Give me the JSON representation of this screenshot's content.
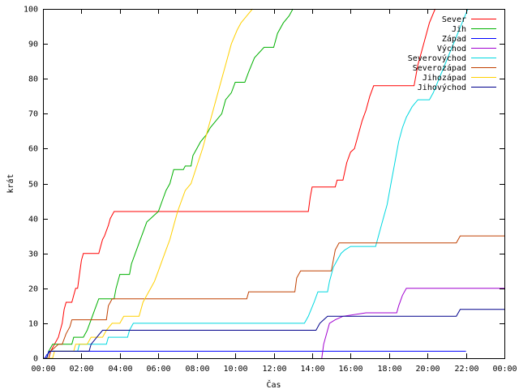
{
  "chart_data": {
    "type": "line",
    "xlabel": "Čas",
    "ylabel": "krát",
    "ylim": [
      0,
      100
    ],
    "xlim": [
      0,
      24
    ],
    "y_ticks": [
      0,
      10,
      20,
      30,
      40,
      50,
      60,
      70,
      80,
      90,
      100
    ],
    "x_ticks": [
      0,
      2,
      4,
      6,
      8,
      10,
      12,
      14,
      16,
      18,
      20,
      22,
      24
    ],
    "x_tick_labels": [
      "00:00",
      "02:00",
      "04:00",
      "06:00",
      "08:00",
      "10:00",
      "12:00",
      "14:00",
      "16:00",
      "18:00",
      "20:00",
      "22:00",
      "00:00"
    ],
    "grid": false,
    "legend_position": "top-right",
    "series": [
      {
        "name": "Sever",
        "color": "#ff0000",
        "points": [
          [
            0,
            0
          ],
          [
            0.3,
            0
          ],
          [
            0.4,
            2
          ],
          [
            0.6,
            4
          ],
          [
            0.8,
            6
          ],
          [
            0.9,
            8
          ],
          [
            1.0,
            10
          ],
          [
            1.1,
            14
          ],
          [
            1.2,
            16
          ],
          [
            1.5,
            16
          ],
          [
            1.6,
            18
          ],
          [
            1.7,
            20
          ],
          [
            1.8,
            20
          ],
          [
            1.9,
            24
          ],
          [
            2.0,
            28
          ],
          [
            2.1,
            30
          ],
          [
            2.9,
            30
          ],
          [
            3.0,
            32
          ],
          [
            3.1,
            34
          ],
          [
            3.2,
            35
          ],
          [
            3.4,
            38
          ],
          [
            3.5,
            40
          ],
          [
            3.7,
            42
          ],
          [
            13.8,
            42
          ],
          [
            13.9,
            46
          ],
          [
            14.0,
            49
          ],
          [
            15.2,
            49
          ],
          [
            15.3,
            51
          ],
          [
            15.6,
            51
          ],
          [
            15.8,
            56
          ],
          [
            16.0,
            59
          ],
          [
            16.2,
            60
          ],
          [
            16.4,
            64
          ],
          [
            16.6,
            68
          ],
          [
            16.8,
            71
          ],
          [
            17.0,
            75
          ],
          [
            17.2,
            78
          ],
          [
            19.3,
            78
          ],
          [
            19.5,
            84
          ],
          [
            19.7,
            88
          ],
          [
            19.9,
            92
          ],
          [
            20.1,
            96
          ],
          [
            20.4,
            100
          ]
        ]
      },
      {
        "name": "Jih",
        "color": "#00b000",
        "points": [
          [
            0,
            0
          ],
          [
            0.2,
            0
          ],
          [
            0.3,
            2
          ],
          [
            0.5,
            4
          ],
          [
            1.5,
            4
          ],
          [
            1.6,
            6
          ],
          [
            2.1,
            6
          ],
          [
            2.3,
            8
          ],
          [
            2.5,
            11
          ],
          [
            2.7,
            14
          ],
          [
            2.9,
            17
          ],
          [
            3.7,
            17
          ],
          [
            3.8,
            20
          ],
          [
            4.0,
            24
          ],
          [
            4.5,
            24
          ],
          [
            4.6,
            27
          ],
          [
            4.8,
            30
          ],
          [
            5.0,
            33
          ],
          [
            5.2,
            36
          ],
          [
            5.4,
            39
          ],
          [
            5.6,
            40
          ],
          [
            5.8,
            41
          ],
          [
            6.0,
            42
          ],
          [
            6.2,
            45
          ],
          [
            6.4,
            48
          ],
          [
            6.6,
            50
          ],
          [
            6.8,
            54
          ],
          [
            7.3,
            54
          ],
          [
            7.4,
            55
          ],
          [
            7.7,
            55
          ],
          [
            7.8,
            58
          ],
          [
            8.0,
            60
          ],
          [
            8.2,
            62
          ],
          [
            8.5,
            64
          ],
          [
            8.7,
            66
          ],
          [
            9.0,
            68
          ],
          [
            9.3,
            70
          ],
          [
            9.5,
            74
          ],
          [
            9.8,
            76
          ],
          [
            10.0,
            79
          ],
          [
            10.5,
            79
          ],
          [
            10.7,
            82
          ],
          [
            11.0,
            86
          ],
          [
            11.5,
            89
          ],
          [
            12.0,
            89
          ],
          [
            12.2,
            93
          ],
          [
            12.5,
            96
          ],
          [
            12.8,
            98
          ],
          [
            13.0,
            100
          ]
        ]
      },
      {
        "name": "Západ",
        "color": "#0000ff",
        "points": [
          [
            0,
            0
          ],
          [
            0.1,
            0
          ],
          [
            0.2,
            1
          ],
          [
            0.4,
            2
          ],
          [
            22.0,
            2
          ]
        ]
      },
      {
        "name": "Východ",
        "color": "#a000d0",
        "points": [
          [
            14.5,
            0
          ],
          [
            14.6,
            4
          ],
          [
            14.8,
            8
          ],
          [
            14.9,
            10
          ],
          [
            15.2,
            11
          ],
          [
            15.6,
            12
          ],
          [
            16.8,
            13
          ],
          [
            18.4,
            13
          ],
          [
            18.5,
            15
          ],
          [
            18.7,
            18
          ],
          [
            18.9,
            20
          ],
          [
            24,
            20
          ]
        ]
      },
      {
        "name": "Severovýchod",
        "color": "#00d8e0",
        "points": [
          [
            0,
            0
          ],
          [
            0.2,
            0
          ],
          [
            0.3,
            2
          ],
          [
            1.8,
            2
          ],
          [
            1.9,
            4
          ],
          [
            3.3,
            4
          ],
          [
            3.4,
            6
          ],
          [
            4.4,
            6
          ],
          [
            4.5,
            8
          ],
          [
            4.7,
            10
          ],
          [
            13.6,
            10
          ],
          [
            13.8,
            12
          ],
          [
            14.1,
            16
          ],
          [
            14.3,
            19
          ],
          [
            14.8,
            19
          ],
          [
            14.9,
            22
          ],
          [
            15.1,
            26
          ],
          [
            15.3,
            28
          ],
          [
            15.5,
            30
          ],
          [
            15.7,
            31
          ],
          [
            16.0,
            32
          ],
          [
            17.3,
            32
          ],
          [
            17.5,
            36
          ],
          [
            17.7,
            40
          ],
          [
            17.9,
            44
          ],
          [
            18.1,
            50
          ],
          [
            18.3,
            56
          ],
          [
            18.5,
            62
          ],
          [
            18.7,
            66
          ],
          [
            18.9,
            69
          ],
          [
            19.2,
            72
          ],
          [
            19.5,
            74
          ],
          [
            20.1,
            74
          ],
          [
            20.3,
            76
          ],
          [
            20.6,
            80
          ],
          [
            20.9,
            84
          ],
          [
            21.2,
            88
          ],
          [
            21.5,
            92
          ],
          [
            21.8,
            96
          ],
          [
            22.1,
            100
          ]
        ]
      },
      {
        "name": "Severozápad",
        "color": "#c04000",
        "points": [
          [
            0,
            0
          ],
          [
            0.3,
            0
          ],
          [
            0.4,
            2
          ],
          [
            0.6,
            3
          ],
          [
            0.8,
            4
          ],
          [
            1.0,
            4
          ],
          [
            1.2,
            7
          ],
          [
            1.4,
            9
          ],
          [
            1.5,
            11
          ],
          [
            3.3,
            11
          ],
          [
            3.4,
            15
          ],
          [
            3.6,
            17
          ],
          [
            10.6,
            17
          ],
          [
            10.7,
            19
          ],
          [
            13.1,
            19
          ],
          [
            13.2,
            23
          ],
          [
            13.4,
            25
          ],
          [
            15.0,
            25
          ],
          [
            15.1,
            28
          ],
          [
            15.2,
            31
          ],
          [
            15.4,
            33
          ],
          [
            21.5,
            33
          ],
          [
            21.7,
            35
          ],
          [
            24,
            35
          ]
        ]
      },
      {
        "name": "Jihozápad",
        "color": "#ffd000",
        "points": [
          [
            0,
            0
          ],
          [
            0.5,
            0
          ],
          [
            0.6,
            2
          ],
          [
            1.6,
            2
          ],
          [
            1.7,
            4
          ],
          [
            2.3,
            4
          ],
          [
            2.5,
            6
          ],
          [
            3.1,
            6
          ],
          [
            3.3,
            8
          ],
          [
            3.6,
            10
          ],
          [
            4.0,
            10
          ],
          [
            4.2,
            12
          ],
          [
            5.0,
            12
          ],
          [
            5.2,
            16
          ],
          [
            5.4,
            18
          ],
          [
            5.6,
            20
          ],
          [
            5.8,
            22
          ],
          [
            6.0,
            25
          ],
          [
            6.2,
            28
          ],
          [
            6.4,
            31
          ],
          [
            6.6,
            34
          ],
          [
            6.8,
            38
          ],
          [
            7.0,
            42
          ],
          [
            7.2,
            45
          ],
          [
            7.4,
            48
          ],
          [
            7.7,
            50
          ],
          [
            8.0,
            55
          ],
          [
            8.3,
            60
          ],
          [
            8.6,
            66
          ],
          [
            8.9,
            72
          ],
          [
            9.2,
            78
          ],
          [
            9.5,
            84
          ],
          [
            9.8,
            90
          ],
          [
            10.1,
            94
          ],
          [
            10.3,
            96
          ],
          [
            10.6,
            98
          ],
          [
            10.9,
            100
          ]
        ]
      },
      {
        "name": "Jihovýchod",
        "color": "#00008b",
        "points": [
          [
            0,
            0
          ],
          [
            0.2,
            0
          ],
          [
            0.3,
            2
          ],
          [
            2.4,
            2
          ],
          [
            2.5,
            4
          ],
          [
            2.8,
            6
          ],
          [
            3.1,
            8
          ],
          [
            14.2,
            8
          ],
          [
            14.4,
            10
          ],
          [
            14.6,
            11
          ],
          [
            14.8,
            12
          ],
          [
            21.5,
            12
          ],
          [
            21.7,
            14
          ],
          [
            24,
            14
          ]
        ]
      }
    ]
  }
}
